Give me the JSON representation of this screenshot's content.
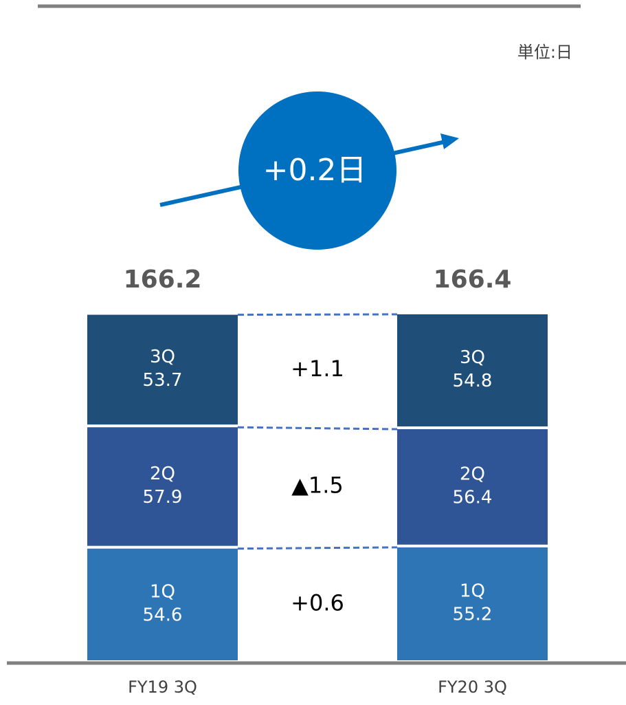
{
  "chart_data": {
    "type": "stacked_bar",
    "unit_label": "単位:日",
    "change_label": "+0.2日",
    "categories": [
      "FY19 3Q",
      "FY20 3Q"
    ],
    "totals": [
      166.2,
      166.4
    ],
    "series": [
      {
        "name": "1Q",
        "color": "#2e75b6",
        "values": [
          54.6,
          55.2
        ],
        "difference": "+0.6"
      },
      {
        "name": "2Q",
        "color": "#2f5597",
        "values": [
          57.9,
          56.4
        ],
        "difference": "▲1.5"
      },
      {
        "name": "3Q",
        "color": "#1f4e79",
        "values": [
          53.7,
          54.8
        ],
        "difference": "+1.1"
      }
    ]
  }
}
